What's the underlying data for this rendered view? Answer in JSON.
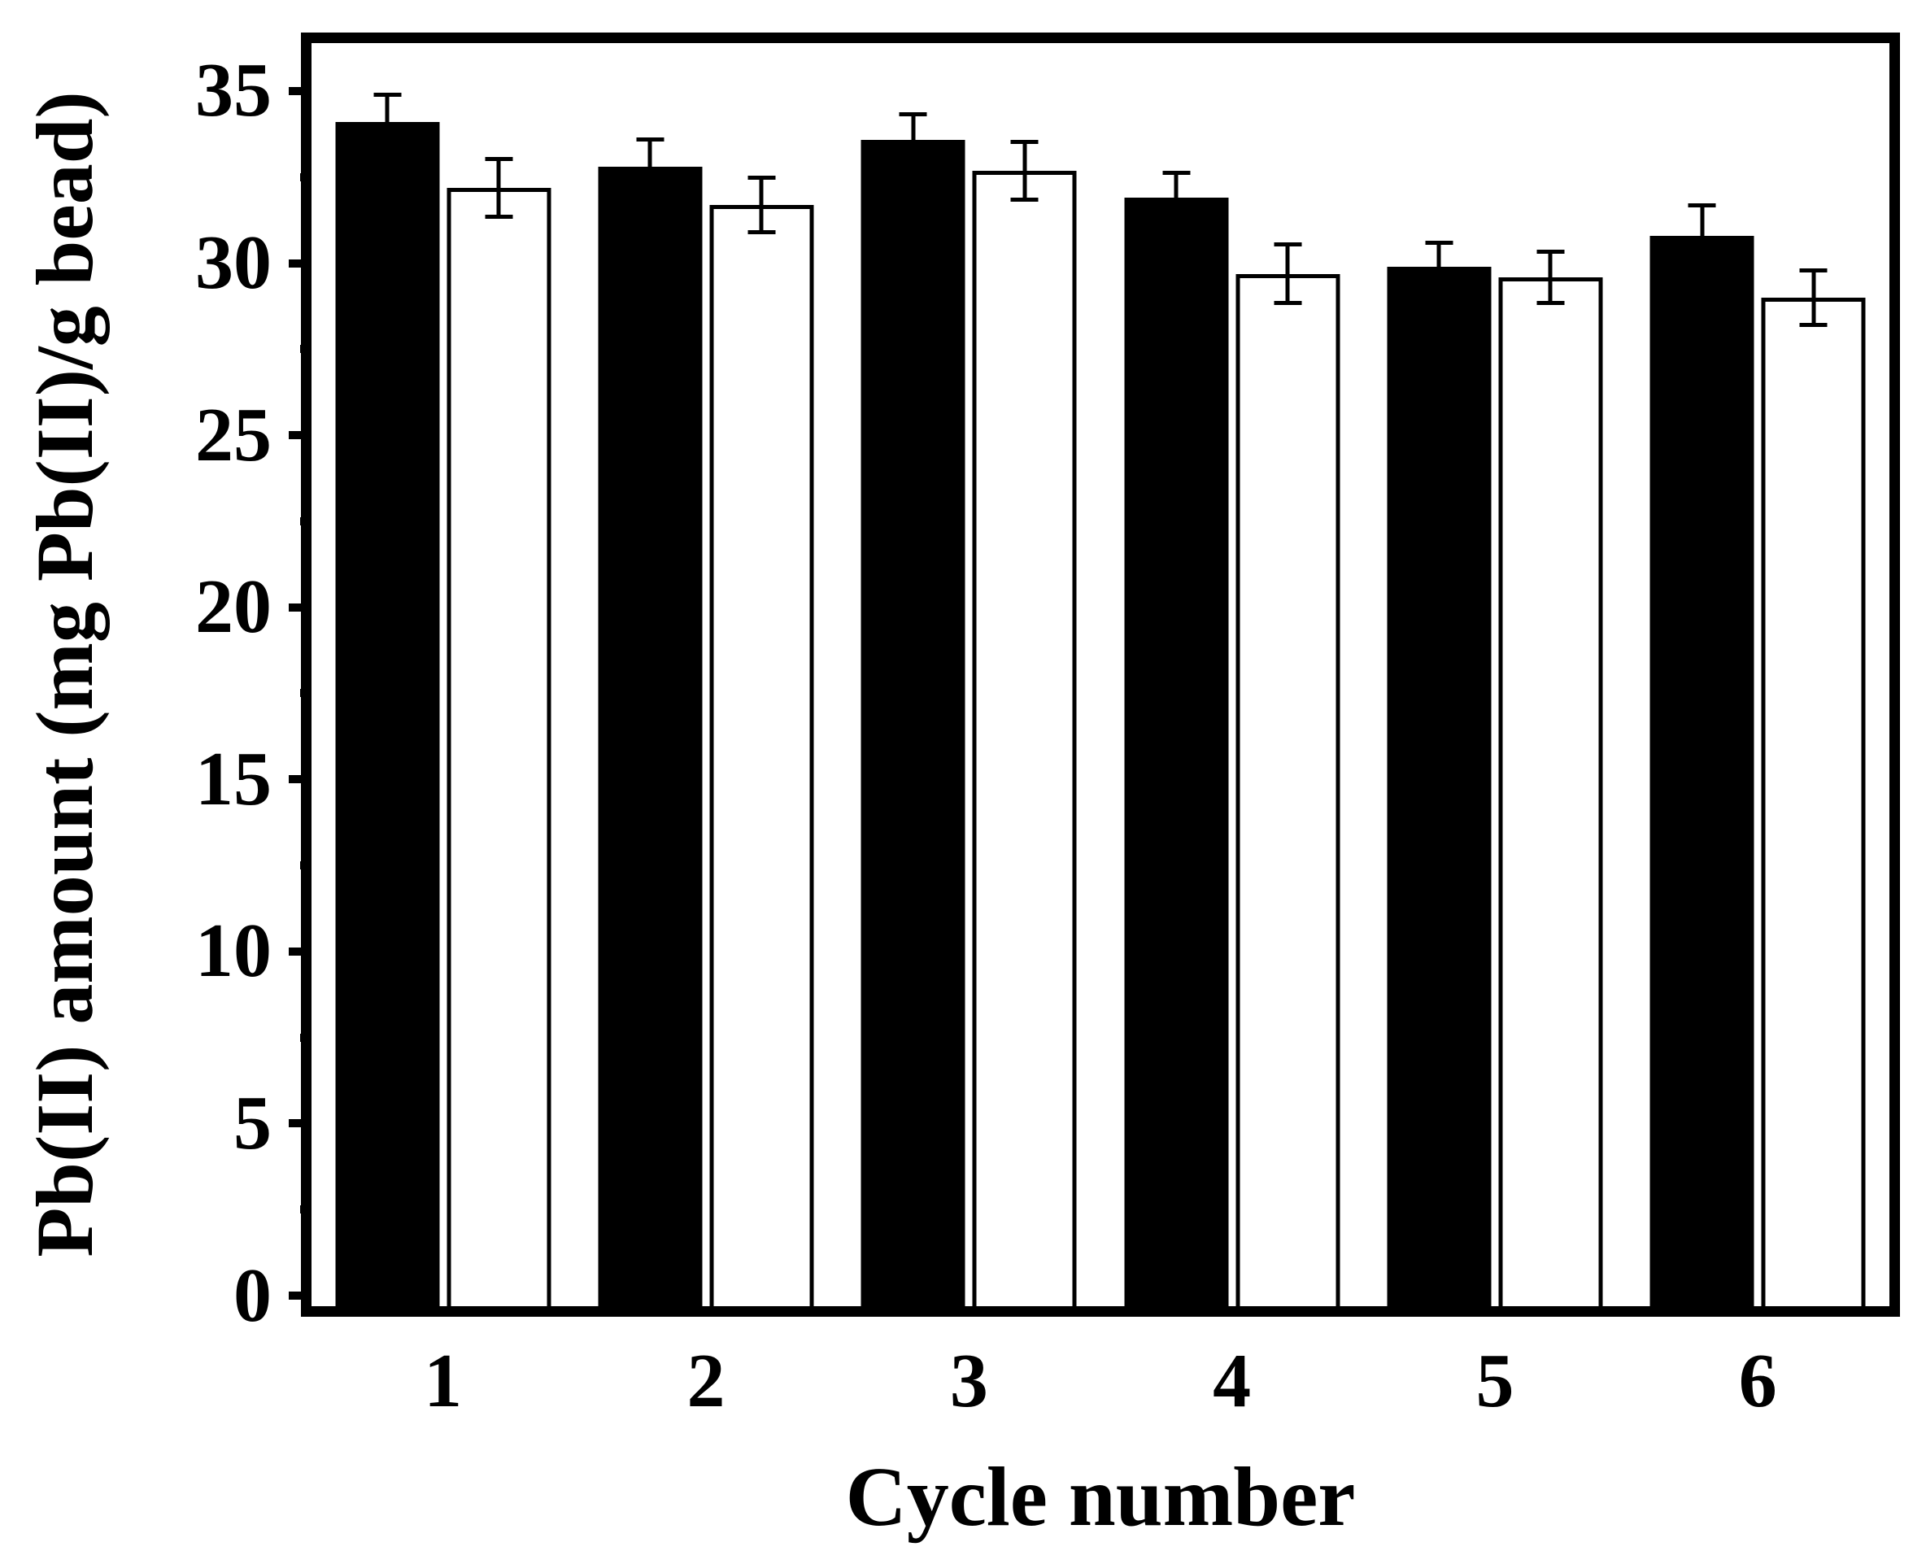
{
  "figure": {
    "background": "#ffffff",
    "frame_color": "#000000",
    "bar_fill_series1": "#000000",
    "bar_fill_series2": "#ffffff"
  },
  "chart_data": {
    "type": "bar",
    "title": "",
    "xlabel": "Cycle number",
    "ylabel": "Pb(II) amount (mg Pb(II)/g bead)",
    "categories": [
      "1",
      "2",
      "3",
      "4",
      "5",
      "6"
    ],
    "series": [
      {
        "name": "black-filled-bars",
        "fill": "#000000",
        "values": [
          34.4,
          33.1,
          33.9,
          32.2,
          30.2,
          31.1
        ],
        "errors": [
          0.85,
          0.85,
          0.8,
          0.8,
          0.75,
          0.95
        ]
      },
      {
        "name": "white-open-bars",
        "fill": "#ffffff",
        "values": [
          32.5,
          32.0,
          33.0,
          30.0,
          29.9,
          29.3
        ],
        "errors": [
          0.9,
          0.85,
          0.9,
          0.9,
          0.8,
          0.85
        ]
      }
    ],
    "ylim": [
      0,
      36.7
    ],
    "yticks_major": [
      0,
      5,
      10,
      15,
      20,
      25,
      30,
      35
    ],
    "yticks_minor": [
      2.5,
      7.5,
      12.5,
      17.5,
      22.5,
      27.5,
      32.5
    ],
    "grid": false,
    "legend": null,
    "error_bars": true
  }
}
